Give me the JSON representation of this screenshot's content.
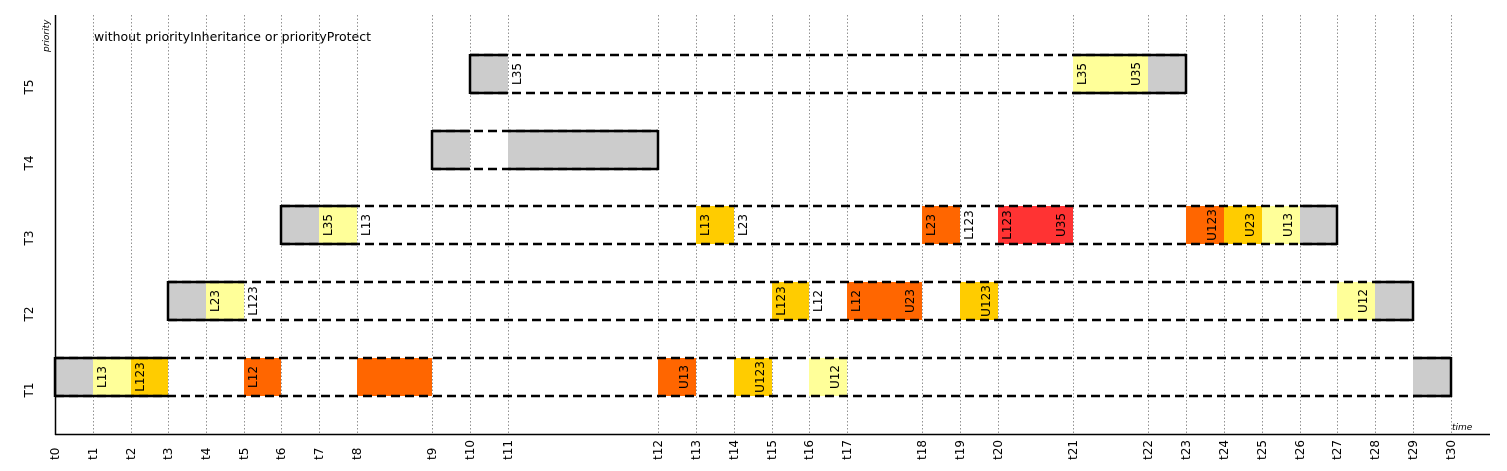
{
  "title": "without priorityInheritance or priorityProtect",
  "y_axis_label": "priority",
  "x_axis_label": "time",
  "ticks": [
    "t0",
    "t1",
    "t2",
    "t3",
    "t4",
    "t5",
    "t6",
    "t7",
    "t8",
    "t9",
    "t10",
    "t11",
    "t12",
    "t13",
    "t14",
    "t15",
    "t16",
    "t17",
    "t18",
    "t19",
    "t20",
    "t21",
    "t22",
    "t23",
    "t24",
    "t25",
    "t26",
    "t27",
    "t28",
    "t29",
    "t30"
  ],
  "colors": {
    "gray": "#cccccc",
    "pale_yellow": "#ffff99",
    "yellow": "#ffcc00",
    "orange": "#ff6600",
    "red": "#ff3333"
  },
  "tasks": [
    {
      "name": "T5",
      "span": [
        "t10",
        "t22"
      ],
      "solid_ranges": [
        [
          "t10",
          "t10"
        ],
        [
          "t22",
          "t22"
        ]
      ],
      "segments": [
        {
          "start": "t10",
          "end": "t11",
          "color": "gray",
          "label": ""
        },
        {
          "start": "t21",
          "end": "t22",
          "color": "pale_yellow",
          "label": ""
        },
        {
          "start": "t22",
          "end": "t23",
          "color": "gray",
          "label": ""
        }
      ],
      "labels": [
        {
          "at": "t11",
          "text": "L35"
        },
        {
          "at": "t21",
          "text": "L35"
        },
        {
          "at": "t22",
          "text": "U35",
          "align": "end"
        }
      ]
    },
    {
      "name": "T4",
      "segments": [
        {
          "start": "t9",
          "end": "t10",
          "color": "gray",
          "label": ""
        },
        {
          "start": "t11",
          "end": "t12",
          "color": "gray",
          "label": ""
        }
      ],
      "labels": []
    },
    {
      "name": "T3",
      "segments": [
        {
          "start": "t6",
          "end": "t7",
          "color": "gray"
        },
        {
          "start": "t7",
          "end": "t8",
          "color": "pale_yellow"
        },
        {
          "start": "t13",
          "end": "t14",
          "color": "yellow"
        },
        {
          "start": "t18",
          "end": "t19",
          "color": "orange"
        },
        {
          "start": "t20",
          "end": "t21",
          "color": "red"
        },
        {
          "start": "t23",
          "end": "t24",
          "color": "orange"
        },
        {
          "start": "t24",
          "end": "t25",
          "color": "yellow"
        },
        {
          "start": "t25",
          "end": "t26",
          "color": "pale_yellow"
        },
        {
          "start": "t26",
          "end": "t27",
          "color": "gray"
        }
      ],
      "labels": [
        {
          "at": "t7",
          "text": "L35"
        },
        {
          "at": "t8",
          "text": "L13"
        },
        {
          "at": "t13",
          "text": "L13"
        },
        {
          "at": "t14",
          "text": "L23"
        },
        {
          "at": "t18",
          "text": "L23"
        },
        {
          "at": "t19",
          "text": "L123"
        },
        {
          "at": "t20",
          "text": "L123"
        },
        {
          "at": "t21",
          "text": "U35",
          "align": "end"
        },
        {
          "at": "t24",
          "text": "U123",
          "align": "end"
        },
        {
          "at": "t25",
          "text": "U23",
          "align": "end"
        },
        {
          "at": "t26",
          "text": "U13",
          "align": "end"
        }
      ]
    },
    {
      "name": "T2",
      "segments": [
        {
          "start": "t3",
          "end": "t4",
          "color": "gray"
        },
        {
          "start": "t4",
          "end": "t5",
          "color": "pale_yellow"
        },
        {
          "start": "t15",
          "end": "t16",
          "color": "yellow"
        },
        {
          "start": "t17",
          "end": "t18",
          "color": "orange"
        },
        {
          "start": "t19",
          "end": "t20",
          "color": "yellow"
        },
        {
          "start": "t27",
          "end": "t28",
          "color": "pale_yellow"
        },
        {
          "start": "t28",
          "end": "t29",
          "color": "gray"
        }
      ],
      "labels": [
        {
          "at": "t4",
          "text": "L23"
        },
        {
          "at": "t5",
          "text": "L123"
        },
        {
          "at": "t15",
          "text": "L123"
        },
        {
          "at": "t16",
          "text": "L12"
        },
        {
          "at": "t17",
          "text": "L12"
        },
        {
          "at": "t18",
          "text": "U23",
          "align": "end"
        },
        {
          "at": "t20",
          "text": "U123",
          "align": "end"
        },
        {
          "at": "t28",
          "text": "U12",
          "align": "end"
        }
      ]
    },
    {
      "name": "T1",
      "segments": [
        {
          "start": "t0",
          "end": "t1",
          "color": "gray"
        },
        {
          "start": "t1",
          "end": "t2",
          "color": "pale_yellow"
        },
        {
          "start": "t2",
          "end": "t3",
          "color": "yellow"
        },
        {
          "start": "t5",
          "end": "t6",
          "color": "orange"
        },
        {
          "start": "t8",
          "end": "t9",
          "color": "orange"
        },
        {
          "start": "t12",
          "end": "t13",
          "color": "orange"
        },
        {
          "start": "t14",
          "end": "t15",
          "color": "yellow"
        },
        {
          "start": "t16",
          "end": "t17",
          "color": "pale_yellow"
        },
        {
          "start": "t29",
          "end": "t30",
          "color": "gray"
        }
      ],
      "labels": [
        {
          "at": "t1",
          "text": "L13"
        },
        {
          "at": "t2",
          "text": "L123"
        },
        {
          "at": "t5",
          "text": "L12"
        },
        {
          "at": "t13",
          "text": "U13",
          "align": "end"
        },
        {
          "at": "t15",
          "text": "U123",
          "align": "end"
        },
        {
          "at": "t17",
          "text": "U12",
          "align": "end"
        }
      ]
    }
  ],
  "task_frames": [
    {
      "task": "T5",
      "start": "t10",
      "end": "t23",
      "solid": [
        [
          "t10",
          "t11"
        ],
        [
          "t21",
          "t23"
        ]
      ]
    },
    {
      "task": "T4",
      "start": "t9",
      "end": "t12",
      "solid": [
        [
          "t9",
          "t10"
        ],
        [
          "t11",
          "t12"
        ]
      ]
    },
    {
      "task": "T3",
      "start": "t6",
      "end": "t27",
      "solid": [
        [
          "t6",
          "t8"
        ],
        [
          "t26",
          "t27"
        ]
      ]
    },
    {
      "task": "T2",
      "start": "t3",
      "end": "t29",
      "solid": [
        [
          "t3",
          "t5"
        ],
        [
          "t28",
          "t29"
        ]
      ]
    },
    {
      "task": "T1",
      "start": "t0",
      "end": "t30",
      "solid": [
        [
          "t0",
          "t3"
        ],
        [
          "t29",
          "t30"
        ]
      ]
    }
  ]
}
